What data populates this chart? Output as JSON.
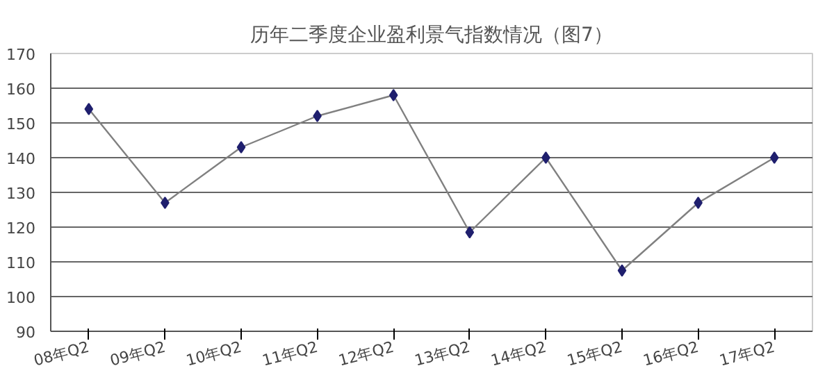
{
  "chart_data": {
    "type": "line",
    "title": "历年二季度企业盈利景气指数情况（图7）",
    "categories": [
      "08年Q2",
      "09年Q2",
      "10年Q2",
      "11年Q2",
      "12年Q2",
      "13年Q2",
      "14年Q2",
      "15年Q2",
      "16年Q2",
      "17年Q2"
    ],
    "series": [
      {
        "color": "#1f1f6e",
        "values": [
          154,
          127,
          143,
          152,
          158,
          118.5,
          140,
          107.5,
          127,
          140
        ]
      }
    ],
    "ylim": [
      90,
      170
    ],
    "yticks": [
      90,
      100,
      110,
      120,
      130,
      140,
      150,
      160,
      170
    ],
    "grid": "y",
    "marker": "diamond"
  }
}
